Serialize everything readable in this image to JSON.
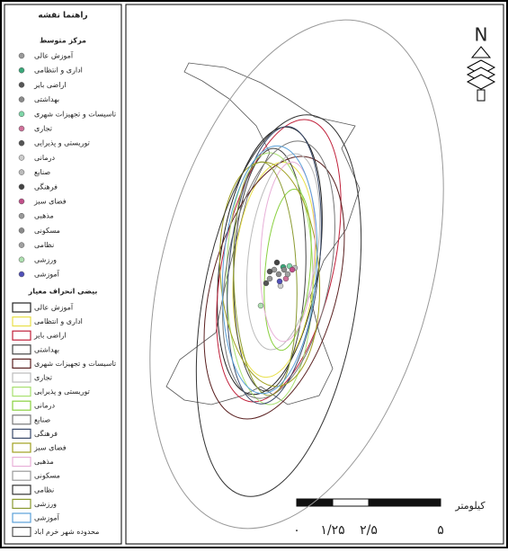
{
  "legend": {
    "title": "راهنما نقشه",
    "center_heading": "مرکز متوسط",
    "centers": [
      {
        "label": "آموزش عالی",
        "color": "#9a9a9a"
      },
      {
        "label": "اداری و انتظامی",
        "color": "#3aa87a"
      },
      {
        "label": "اراضی بایر",
        "color": "#555555"
      },
      {
        "label": "بهداشتی",
        "color": "#8a8a8a"
      },
      {
        "label": "تاسیسات و تجهیزات شهری",
        "color": "#7fd6a8"
      },
      {
        "label": "تجاری",
        "color": "#d0709a"
      },
      {
        "label": "توریستی و پذیرایی",
        "color": "#555555"
      },
      {
        "label": "درمانی",
        "color": "#cccccc"
      },
      {
        "label": "صنایع",
        "color": "#bbbbbb"
      },
      {
        "label": "فرهنگی",
        "color": "#444444"
      },
      {
        "label": "فضای سبز",
        "color": "#c24f8a"
      },
      {
        "label": "مذهبی",
        "color": "#999999"
      },
      {
        "label": "مسکونی",
        "color": "#8a8a8a"
      },
      {
        "label": "نظامی",
        "color": "#a0a0a0"
      },
      {
        "label": "ورزشی",
        "color": "#aee0b0"
      },
      {
        "label": "آموزشی",
        "color": "#5050b8"
      }
    ],
    "ellipse_heading": "بیضی انحراف معیار",
    "ellipses": [
      {
        "label": "آموزش عالی",
        "color": "#222222"
      },
      {
        "label": "اداری و انتظامی",
        "color": "#e8e04a"
      },
      {
        "label": "اراضی بایر",
        "color": "#c0203a"
      },
      {
        "label": "بهداشتی",
        "color": "#444444"
      },
      {
        "label": "تاسیسات و تجهیزات شهری",
        "color": "#5a2020"
      },
      {
        "label": "تجاری",
        "color": "#bbbbbb"
      },
      {
        "label": "توریستی و پذیرایی",
        "color": "#a8e070"
      },
      {
        "label": "درمانی",
        "color": "#8ad040"
      },
      {
        "label": "صنایع",
        "color": "#777777"
      },
      {
        "label": "فرهنگی",
        "color": "#3a4a6a"
      },
      {
        "label": "فضای سبز",
        "color": "#a0a020"
      },
      {
        "label": "مذهبی",
        "color": "#e8b0d8"
      },
      {
        "label": "مسکونی",
        "color": "#999999"
      },
      {
        "label": "نظامی",
        "color": "#333333"
      },
      {
        "label": "ورزشی",
        "color": "#8a9a30"
      },
      {
        "label": "آموزشی",
        "color": "#5aa0d8"
      },
      {
        "label": "محدوده شهر خرم اباد",
        "color": "#555555"
      }
    ]
  },
  "scale": {
    "unit": "کیلومتر",
    "labels": [
      "۰",
      "۱/۲۵",
      "۲/۵",
      "۵"
    ]
  },
  "north": "N"
}
